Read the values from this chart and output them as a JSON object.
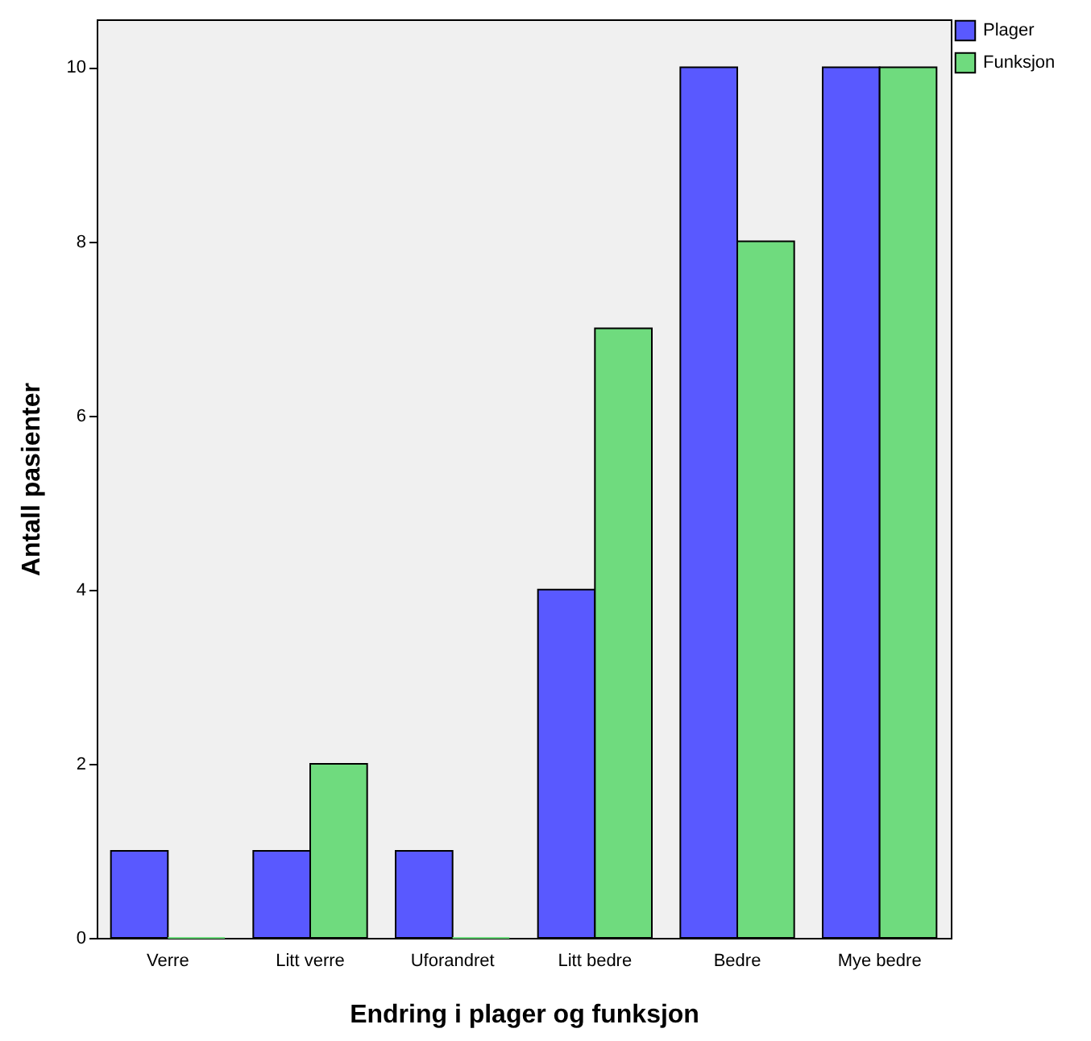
{
  "chart_data": {
    "type": "bar",
    "xlabel": "Endring i plager og funksjon",
    "ylabel": "Antall pasienter",
    "categories": [
      "Verre",
      "Litt verre",
      "Uforandret",
      "Litt bedre",
      "Bedre",
      "Mye bedre"
    ],
    "series": [
      {
        "name": "Plager",
        "color": "#5959ff",
        "values": [
          1,
          1,
          1,
          4,
          10,
          10
        ]
      },
      {
        "name": "Funksjon",
        "color": "#6fdb7e",
        "values": [
          0,
          2,
          0,
          7,
          8,
          10
        ]
      }
    ],
    "ylim": [
      0,
      10.55
    ],
    "yticks": [
      0,
      2,
      4,
      6,
      8,
      10
    ],
    "grid": false,
    "legend": "top right"
  }
}
